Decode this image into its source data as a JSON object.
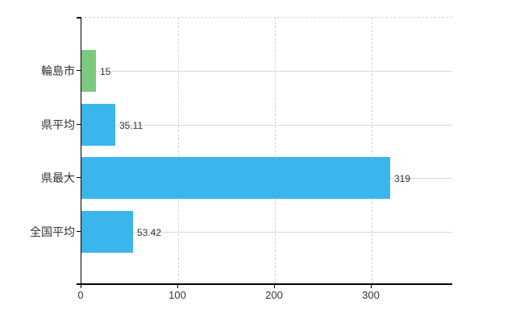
{
  "chart_data": {
    "type": "bar",
    "orientation": "horizontal",
    "title": "",
    "xlabel": "",
    "ylabel": "",
    "categories": [
      "輪島市",
      "県平均",
      "県最大",
      "全国平均"
    ],
    "values": [
      15,
      35.11,
      319,
      53.42
    ],
    "value_labels": [
      "15",
      "35.11",
      "319",
      "53.42"
    ],
    "bar_colors": [
      "#7dca7f",
      "#3ab6ec",
      "#3ab6ec",
      "#3ab6ec"
    ],
    "xlim": [
      0,
      384
    ],
    "xticks": [
      0,
      100,
      200,
      300
    ],
    "xtick_labels": [
      "0",
      "100",
      "200",
      "300"
    ],
    "grid": "on",
    "legend": "none",
    "colors": {
      "axis": "#000000",
      "grid_solid": "#d8d8d8",
      "grid_dashed": "#d4d4d4",
      "text": "#333333",
      "background": "#ffffff"
    }
  }
}
